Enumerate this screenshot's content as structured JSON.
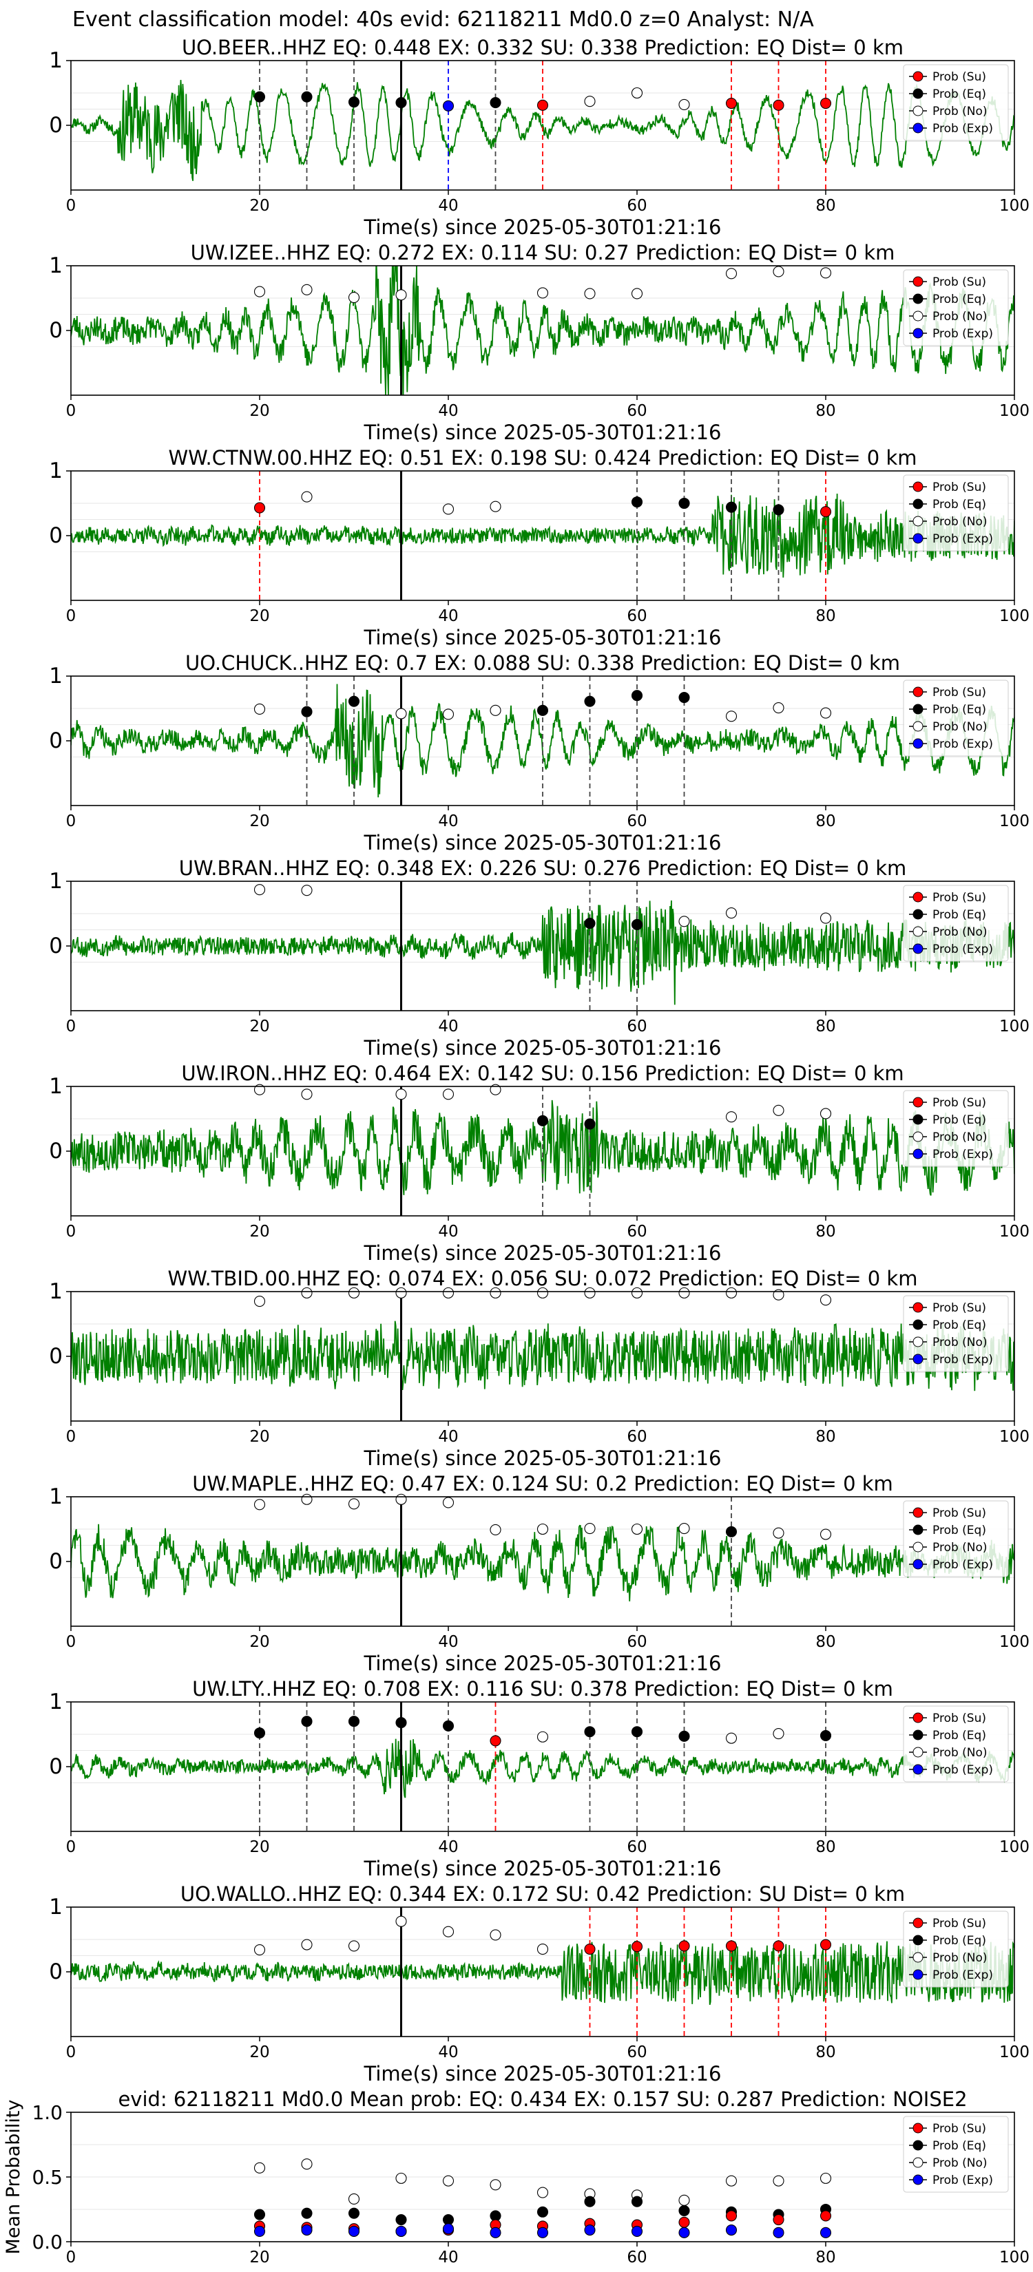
{
  "header": {
    "suptitle": "Event classification model: 40s evid: 62118211 Md0.0 z=0 Analyst: N/A"
  },
  "colors": {
    "trace": "#008000",
    "su": "#ff0000",
    "eq": "#000000",
    "no": "#ffffff",
    "exp": "#0000ff",
    "vline_pick": "#000000"
  },
  "legend": {
    "su": "Prob (Su)",
    "eq": "Prob (Eq)",
    "no": "Prob (No)",
    "exp": "Prob (Exp)",
    "placement": "top-right"
  },
  "chart_data": [
    {
      "type": "line",
      "title": "UO.BEER..HHZ   EQ: 0.448  EX: 0.332  SU: 0.338   Prediction: EQ    Dist= 0 km",
      "xlabel": "Time(s) since 2025-05-30T01:21:16",
      "xlim": [
        0,
        100
      ],
      "ylim": [
        -1,
        1
      ],
      "xticks": [
        "0",
        "20",
        "40",
        "60",
        "80",
        "100"
      ],
      "yticks": [
        "1",
        "0"
      ],
      "pick_line": 35,
      "seed": 11,
      "noise": 0.08,
      "wave": 0.6,
      "period": 3.2,
      "bursts": [
        [
          5,
          14,
          0.5
        ]
      ],
      "markers": [
        {
          "x": 20,
          "y": 0.44,
          "cls": "eq"
        },
        {
          "x": 25,
          "y": 0.44,
          "cls": "eq"
        },
        {
          "x": 30,
          "y": 0.36,
          "cls": "eq"
        },
        {
          "x": 35,
          "y": 0.35,
          "cls": "eq"
        },
        {
          "x": 40,
          "y": 0.3,
          "cls": "exp"
        },
        {
          "x": 45,
          "y": 0.35,
          "cls": "eq"
        },
        {
          "x": 50,
          "y": 0.31,
          "cls": "su"
        },
        {
          "x": 55,
          "y": 0.37,
          "cls": "no"
        },
        {
          "x": 60,
          "y": 0.5,
          "cls": "no"
        },
        {
          "x": 65,
          "y": 0.32,
          "cls": "no"
        },
        {
          "x": 70,
          "y": 0.34,
          "cls": "su"
        },
        {
          "x": 75,
          "y": 0.31,
          "cls": "su"
        },
        {
          "x": 80,
          "y": 0.34,
          "cls": "su"
        }
      ]
    },
    {
      "type": "line",
      "title": "UW.IZEE..HHZ   EQ: 0.272  EX: 0.114  SU: 0.27   Prediction: EQ    Dist= 0 km",
      "xlabel": "Time(s) since 2025-05-30T01:21:16",
      "xlim": [
        0,
        100
      ],
      "ylim": [
        -1,
        1
      ],
      "xticks": [
        "0",
        "20",
        "40",
        "60",
        "80",
        "100"
      ],
      "yticks": [
        "1",
        "0"
      ],
      "pick_line": 35,
      "seed": 23,
      "noise": 0.18,
      "wave": 0.55,
      "period": 2.6,
      "bursts": [
        [
          32,
          37,
          0.6
        ]
      ],
      "markers": [
        {
          "x": 20,
          "y": 0.6,
          "cls": "no"
        },
        {
          "x": 25,
          "y": 0.63,
          "cls": "no"
        },
        {
          "x": 30,
          "y": 0.51,
          "cls": "no"
        },
        {
          "x": 35,
          "y": 0.55,
          "cls": "no"
        },
        {
          "x": 50,
          "y": 0.58,
          "cls": "no"
        },
        {
          "x": 55,
          "y": 0.57,
          "cls": "no"
        },
        {
          "x": 60,
          "y": 0.57,
          "cls": "no"
        },
        {
          "x": 70,
          "y": 0.88,
          "cls": "no"
        },
        {
          "x": 75,
          "y": 0.91,
          "cls": "no"
        },
        {
          "x": 80,
          "y": 0.89,
          "cls": "no"
        }
      ]
    },
    {
      "type": "line",
      "title": "WW.CTNW.00.HHZ   EQ: 0.51  EX: 0.198  SU: 0.424   Prediction: EQ    Dist= 0 km",
      "xlabel": "Time(s) since 2025-05-30T01:21:16",
      "xlim": [
        0,
        100
      ],
      "ylim": [
        -1,
        1
      ],
      "xticks": [
        "0",
        "20",
        "40",
        "60",
        "80",
        "100"
      ],
      "yticks": [
        "1",
        "0"
      ],
      "pick_line": 35,
      "seed": 37,
      "noise": 0.12,
      "wave": 0.05,
      "period": 2.0,
      "bursts": [
        [
          68,
          82,
          0.5
        ],
        [
          82,
          100,
          0.25
        ]
      ],
      "markers": [
        {
          "x": 20,
          "y": 0.43,
          "cls": "su"
        },
        {
          "x": 25,
          "y": 0.6,
          "cls": "no"
        },
        {
          "x": 40,
          "y": 0.41,
          "cls": "no"
        },
        {
          "x": 45,
          "y": 0.45,
          "cls": "no"
        },
        {
          "x": 60,
          "y": 0.52,
          "cls": "eq"
        },
        {
          "x": 65,
          "y": 0.5,
          "cls": "eq"
        },
        {
          "x": 70,
          "y": 0.44,
          "cls": "eq"
        },
        {
          "x": 75,
          "y": 0.4,
          "cls": "eq"
        },
        {
          "x": 80,
          "y": 0.37,
          "cls": "su"
        }
      ]
    },
    {
      "type": "line",
      "title": "UO.CHUCK..HHZ   EQ: 0.7  EX: 0.088  SU: 0.338   Prediction: EQ    Dist= 0 km",
      "xlabel": "Time(s) since 2025-05-30T01:21:16",
      "xlim": [
        0,
        100
      ],
      "ylim": [
        -1,
        1
      ],
      "xticks": [
        "0",
        "20",
        "40",
        "60",
        "80",
        "100"
      ],
      "yticks": [
        "1",
        "0"
      ],
      "pick_line": 35,
      "seed": 41,
      "noise": 0.14,
      "wave": 0.45,
      "period": 3.0,
      "bursts": [
        [
          28,
          33,
          0.5
        ]
      ],
      "markers": [
        {
          "x": 20,
          "y": 0.49,
          "cls": "no"
        },
        {
          "x": 25,
          "y": 0.45,
          "cls": "eq"
        },
        {
          "x": 30,
          "y": 0.61,
          "cls": "eq"
        },
        {
          "x": 35,
          "y": 0.42,
          "cls": "no"
        },
        {
          "x": 40,
          "y": 0.41,
          "cls": "no"
        },
        {
          "x": 45,
          "y": 0.47,
          "cls": "no"
        },
        {
          "x": 50,
          "y": 0.47,
          "cls": "eq"
        },
        {
          "x": 55,
          "y": 0.61,
          "cls": "eq"
        },
        {
          "x": 60,
          "y": 0.7,
          "cls": "eq"
        },
        {
          "x": 65,
          "y": 0.67,
          "cls": "eq"
        },
        {
          "x": 70,
          "y": 0.38,
          "cls": "no"
        },
        {
          "x": 75,
          "y": 0.51,
          "cls": "no"
        },
        {
          "x": 80,
          "y": 0.43,
          "cls": "no"
        }
      ]
    },
    {
      "type": "line",
      "title": "UW.BRAN..HHZ   EQ: 0.348  EX: 0.226  SU: 0.276   Prediction: EQ    Dist= 0 km",
      "xlabel": "Time(s) since 2025-05-30T01:21:16",
      "xlim": [
        0,
        100
      ],
      "ylim": [
        -1,
        1
      ],
      "xticks": [
        "0",
        "20",
        "40",
        "60",
        "80",
        "100"
      ],
      "yticks": [
        "1",
        "0"
      ],
      "pick_line": 35,
      "seed": 53,
      "noise": 0.14,
      "wave": 0.08,
      "period": 2.4,
      "bursts": [
        [
          50,
          64,
          0.55
        ],
        [
          64,
          100,
          0.25
        ]
      ],
      "markers": [
        {
          "x": 20,
          "y": 0.87,
          "cls": "no"
        },
        {
          "x": 25,
          "y": 0.86,
          "cls": "no"
        },
        {
          "x": 55,
          "y": 0.35,
          "cls": "eq"
        },
        {
          "x": 60,
          "y": 0.33,
          "cls": "eq"
        },
        {
          "x": 65,
          "y": 0.38,
          "cls": "no"
        },
        {
          "x": 70,
          "y": 0.51,
          "cls": "no"
        },
        {
          "x": 80,
          "y": 0.43,
          "cls": "no"
        }
      ]
    },
    {
      "type": "line",
      "title": "UW.IRON..HHZ   EQ: 0.464  EX: 0.142  SU: 0.156   Prediction: EQ    Dist= 0 km",
      "xlabel": "Time(s) since 2025-05-30T01:21:16",
      "xlim": [
        0,
        100
      ],
      "ylim": [
        -1,
        1
      ],
      "xticks": [
        "0",
        "20",
        "40",
        "60",
        "80",
        "100"
      ],
      "yticks": [
        "1",
        "0"
      ],
      "pick_line": 35,
      "seed": 67,
      "noise": 0.3,
      "wave": 0.4,
      "period": 2.8,
      "bursts": [
        [
          50,
          56,
          0.4
        ]
      ],
      "markers": [
        {
          "x": 20,
          "y": 0.95,
          "cls": "no"
        },
        {
          "x": 25,
          "y": 0.88,
          "cls": "no"
        },
        {
          "x": 35,
          "y": 0.88,
          "cls": "no"
        },
        {
          "x": 40,
          "y": 0.88,
          "cls": "no"
        },
        {
          "x": 45,
          "y": 0.95,
          "cls": "no"
        },
        {
          "x": 50,
          "y": 0.47,
          "cls": "eq"
        },
        {
          "x": 55,
          "y": 0.42,
          "cls": "eq"
        },
        {
          "x": 70,
          "y": 0.53,
          "cls": "no"
        },
        {
          "x": 75,
          "y": 0.63,
          "cls": "no"
        },
        {
          "x": 80,
          "y": 0.58,
          "cls": "no"
        }
      ]
    },
    {
      "type": "line",
      "title": "WW.TBID.00.HHZ   EQ: 0.074  EX: 0.056  SU: 0.072   Prediction: EQ    Dist= 0 km",
      "xlabel": "Time(s) since 2025-05-30T01:21:16",
      "xlim": [
        0,
        100
      ],
      "ylim": [
        -1,
        1
      ],
      "xticks": [
        "0",
        "20",
        "40",
        "60",
        "80",
        "100"
      ],
      "yticks": [
        "1",
        "0"
      ],
      "pick_line": 35,
      "seed": 79,
      "noise": 0.42,
      "wave": 0.15,
      "period": 2.0,
      "bursts": [],
      "markers": [
        {
          "x": 20,
          "y": 0.85,
          "cls": "no"
        },
        {
          "x": 25,
          "y": 0.98,
          "cls": "no"
        },
        {
          "x": 30,
          "y": 0.98,
          "cls": "no"
        },
        {
          "x": 35,
          "y": 0.98,
          "cls": "no"
        },
        {
          "x": 40,
          "y": 0.98,
          "cls": "no"
        },
        {
          "x": 45,
          "y": 0.98,
          "cls": "no"
        },
        {
          "x": 50,
          "y": 0.98,
          "cls": "no"
        },
        {
          "x": 55,
          "y": 0.98,
          "cls": "no"
        },
        {
          "x": 60,
          "y": 0.98,
          "cls": "no"
        },
        {
          "x": 65,
          "y": 0.98,
          "cls": "no"
        },
        {
          "x": 70,
          "y": 0.98,
          "cls": "no"
        },
        {
          "x": 75,
          "y": 0.95,
          "cls": "no"
        },
        {
          "x": 80,
          "y": 0.87,
          "cls": "no"
        }
      ]
    },
    {
      "type": "line",
      "title": "UW.MAPLE..HHZ   EQ: 0.47  EX: 0.124  SU: 0.2   Prediction: EQ    Dist= 0 km",
      "xlabel": "Time(s) since 2025-05-30T01:21:16",
      "xlim": [
        0,
        100
      ],
      "ylim": [
        -1,
        1
      ],
      "xticks": [
        "0",
        "20",
        "40",
        "60",
        "80",
        "100"
      ],
      "yticks": [
        "1",
        "0"
      ],
      "pick_line": 35,
      "seed": 83,
      "noise": 0.22,
      "wave": 0.4,
      "period": 3.0,
      "bursts": [],
      "markers": [
        {
          "x": 20,
          "y": 0.88,
          "cls": "no"
        },
        {
          "x": 25,
          "y": 0.96,
          "cls": "no"
        },
        {
          "x": 30,
          "y": 0.89,
          "cls": "no"
        },
        {
          "x": 35,
          "y": 0.96,
          "cls": "no"
        },
        {
          "x": 40,
          "y": 0.91,
          "cls": "no"
        },
        {
          "x": 45,
          "y": 0.49,
          "cls": "no"
        },
        {
          "x": 50,
          "y": 0.5,
          "cls": "no"
        },
        {
          "x": 55,
          "y": 0.51,
          "cls": "no"
        },
        {
          "x": 60,
          "y": 0.5,
          "cls": "no"
        },
        {
          "x": 65,
          "y": 0.51,
          "cls": "no"
        },
        {
          "x": 70,
          "y": 0.46,
          "cls": "eq"
        },
        {
          "x": 75,
          "y": 0.44,
          "cls": "no"
        },
        {
          "x": 80,
          "y": 0.42,
          "cls": "no"
        }
      ]
    },
    {
      "type": "line",
      "title": "UW.LTY..HHZ   EQ: 0.708  EX: 0.116  SU: 0.378   Prediction: EQ    Dist= 0 km",
      "xlabel": "Time(s) since 2025-05-30T01:21:16",
      "xlim": [
        0,
        100
      ],
      "ylim": [
        -1,
        1
      ],
      "xticks": [
        "0",
        "20",
        "40",
        "60",
        "80",
        "100"
      ],
      "yticks": [
        "1",
        "0"
      ],
      "pick_line": 35,
      "seed": 97,
      "noise": 0.1,
      "wave": 0.18,
      "period": 2.6,
      "bursts": [
        [
          33,
          37,
          0.3
        ]
      ],
      "markers": [
        {
          "x": 20,
          "y": 0.52,
          "cls": "eq"
        },
        {
          "x": 25,
          "y": 0.7,
          "cls": "eq"
        },
        {
          "x": 30,
          "y": 0.7,
          "cls": "eq"
        },
        {
          "x": 35,
          "y": 0.68,
          "cls": "eq"
        },
        {
          "x": 40,
          "y": 0.63,
          "cls": "eq"
        },
        {
          "x": 45,
          "y": 0.4,
          "cls": "su"
        },
        {
          "x": 50,
          "y": 0.46,
          "cls": "no"
        },
        {
          "x": 55,
          "y": 0.54,
          "cls": "eq"
        },
        {
          "x": 60,
          "y": 0.54,
          "cls": "eq"
        },
        {
          "x": 65,
          "y": 0.47,
          "cls": "eq"
        },
        {
          "x": 70,
          "y": 0.44,
          "cls": "no"
        },
        {
          "x": 75,
          "y": 0.51,
          "cls": "no"
        },
        {
          "x": 80,
          "y": 0.48,
          "cls": "eq"
        }
      ]
    },
    {
      "type": "line",
      "title": "UO.WALLO..HHZ   EQ: 0.344  EX: 0.172  SU: 0.42   Prediction: SU    Dist= 0 km",
      "xlabel": "Time(s) since 2025-05-30T01:21:16",
      "xlim": [
        0,
        100
      ],
      "ylim": [
        -1,
        1
      ],
      "xticks": [
        "0",
        "20",
        "40",
        "60",
        "80",
        "100"
      ],
      "yticks": [
        "1",
        "0"
      ],
      "pick_line": 35,
      "seed": 101,
      "noise": 0.12,
      "wave": 0.05,
      "period": 2.2,
      "bursts": [
        [
          52,
          100,
          0.35
        ]
      ],
      "markers": [
        {
          "x": 20,
          "y": 0.34,
          "cls": "no"
        },
        {
          "x": 25,
          "y": 0.42,
          "cls": "no"
        },
        {
          "x": 30,
          "y": 0.4,
          "cls": "no"
        },
        {
          "x": 35,
          "y": 0.78,
          "cls": "no"
        },
        {
          "x": 40,
          "y": 0.62,
          "cls": "no"
        },
        {
          "x": 45,
          "y": 0.57,
          "cls": "no"
        },
        {
          "x": 50,
          "y": 0.35,
          "cls": "no"
        },
        {
          "x": 55,
          "y": 0.35,
          "cls": "su"
        },
        {
          "x": 60,
          "y": 0.39,
          "cls": "su"
        },
        {
          "x": 65,
          "y": 0.4,
          "cls": "su"
        },
        {
          "x": 70,
          "y": 0.4,
          "cls": "su"
        },
        {
          "x": 75,
          "y": 0.4,
          "cls": "su"
        },
        {
          "x": 80,
          "y": 0.42,
          "cls": "su"
        }
      ]
    },
    {
      "type": "scatter",
      "title": "evid: 62118211  Md0.0  Mean prob:   EQ: 0.434  EX: 0.157  SU: 0.287   Prediction: NOISE2",
      "ylabel": "Mean Probability",
      "xlim": [
        0,
        100
      ],
      "ylim": [
        0,
        1
      ],
      "xticks": [
        "0",
        "20",
        "40",
        "60",
        "80",
        "100"
      ],
      "yticks": [
        "0.0",
        "0.5",
        "1.0"
      ],
      "series": [
        {
          "cls": "no",
          "x": [
            20,
            25,
            30,
            35,
            40,
            45,
            50,
            55,
            60,
            65,
            70,
            75,
            80
          ],
          "values": [
            0.57,
            0.6,
            0.33,
            0.49,
            0.47,
            0.44,
            0.38,
            0.37,
            0.36,
            0.32,
            0.47,
            0.47,
            0.49
          ]
        },
        {
          "cls": "eq",
          "x": [
            20,
            25,
            30,
            35,
            40,
            45,
            50,
            55,
            60,
            65,
            70,
            75,
            80
          ],
          "values": [
            0.21,
            0.22,
            0.22,
            0.17,
            0.17,
            0.2,
            0.23,
            0.31,
            0.31,
            0.24,
            0.23,
            0.21,
            0.25
          ]
        },
        {
          "cls": "su",
          "x": [
            20,
            25,
            30,
            35,
            40,
            45,
            50,
            55,
            60,
            65,
            70,
            75,
            80
          ],
          "values": [
            0.12,
            0.11,
            0.1,
            0.08,
            0.09,
            0.13,
            0.12,
            0.14,
            0.13,
            0.15,
            0.2,
            0.17,
            0.2
          ]
        },
        {
          "cls": "exp",
          "x": [
            20,
            25,
            30,
            35,
            40,
            45,
            50,
            55,
            60,
            65,
            70,
            75,
            80
          ],
          "values": [
            0.08,
            0.09,
            0.08,
            0.08,
            0.1,
            0.07,
            0.07,
            0.09,
            0.08,
            0.07,
            0.09,
            0.07,
            0.07
          ]
        }
      ]
    }
  ]
}
